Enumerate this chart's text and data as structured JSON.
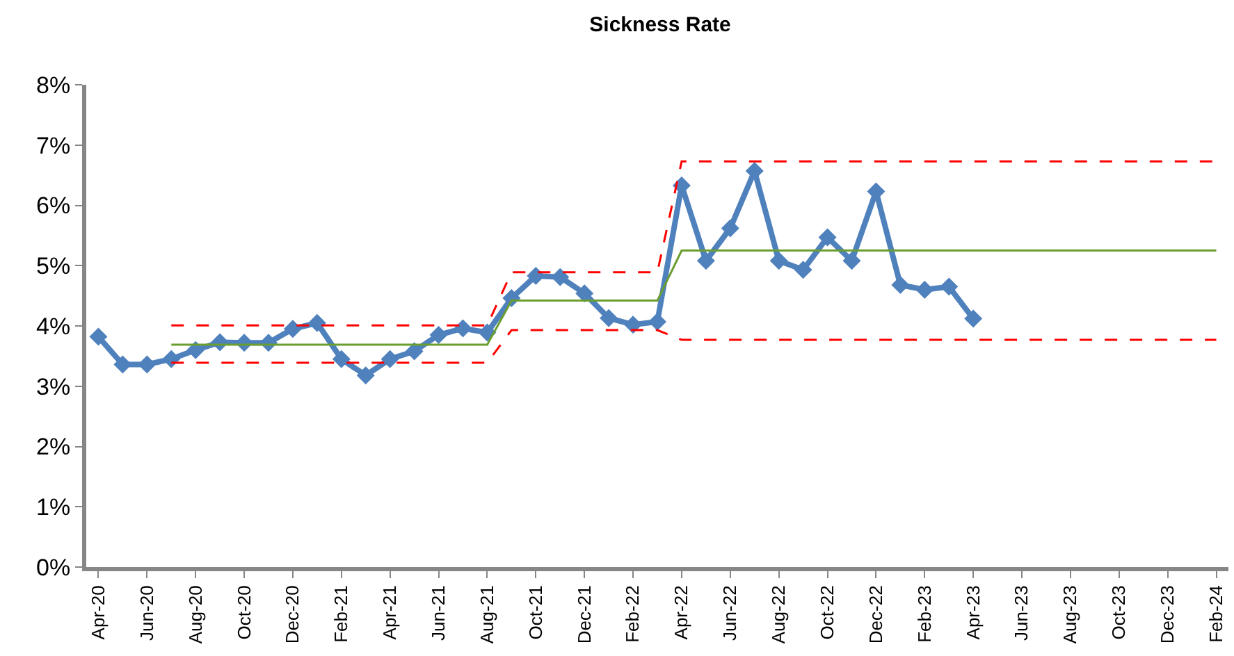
{
  "chart_data": {
    "type": "line",
    "title": "Sickness Rate",
    "categories": [
      "Apr-20",
      null,
      "Jun-20",
      null,
      "Aug-20",
      null,
      "Oct-20",
      null,
      "Dec-20",
      null,
      "Feb-21",
      null,
      "Apr-21",
      null,
      "Jun-21",
      null,
      "Aug-21",
      null,
      "Oct-21",
      null,
      "Dec-21",
      null,
      "Feb-22",
      null,
      "Apr-22",
      null,
      "Jun-22",
      null,
      "Aug-22",
      null,
      "Oct-22",
      null,
      "Dec-22",
      null,
      "Feb-23",
      null,
      "Apr-23",
      null,
      "Jun-23",
      null,
      "Aug-23",
      null,
      "Oct-23",
      null,
      "Dec-23",
      null,
      "Feb-24"
    ],
    "series": [
      {
        "color": "#4f81bd",
        "marker": "diamond",
        "line_style": "solid",
        "values": [
          3.82,
          3.36,
          3.36,
          3.45,
          3.6,
          3.73,
          3.72,
          3.72,
          3.95,
          4.05,
          3.45,
          3.18,
          3.45,
          3.58,
          3.85,
          3.96,
          3.89,
          4.46,
          4.83,
          4.81,
          4.54,
          4.13,
          4.02,
          4.07,
          6.33,
          5.08,
          5.62,
          6.57,
          5.08,
          4.93,
          5.47,
          5.08,
          6.23,
          4.68,
          4.6,
          4.65,
          4.12,
          null,
          null,
          null,
          null,
          null,
          null,
          null,
          null,
          null,
          null
        ]
      },
      {
        "color": "#6a9e2f",
        "marker": "none",
        "line_style": "solid",
        "values": [
          null,
          null,
          null,
          3.69,
          3.69,
          3.69,
          3.69,
          3.69,
          3.69,
          3.69,
          3.69,
          3.69,
          3.69,
          3.69,
          3.69,
          3.69,
          3.69,
          4.42,
          4.42,
          4.42,
          4.42,
          4.42,
          4.42,
          4.42,
          5.25,
          5.25,
          5.25,
          5.25,
          5.25,
          5.25,
          5.25,
          5.25,
          5.25,
          5.25,
          5.25,
          5.25,
          5.25,
          5.25,
          5.25,
          5.25,
          5.25,
          5.25,
          5.25,
          5.25,
          5.25,
          5.25,
          5.25
        ]
      },
      {
        "color": "#ff0000",
        "marker": "none",
        "line_style": "dashed",
        "values": [
          null,
          null,
          null,
          4.01,
          4.01,
          4.01,
          4.01,
          4.01,
          4.01,
          4.01,
          4.01,
          4.01,
          4.01,
          4.01,
          4.01,
          4.01,
          4.01,
          4.89,
          4.89,
          4.89,
          4.89,
          4.89,
          4.89,
          4.89,
          6.73,
          6.73,
          6.73,
          6.73,
          6.73,
          6.73,
          6.73,
          6.73,
          6.73,
          6.73,
          6.73,
          6.73,
          6.73,
          6.73,
          6.73,
          6.73,
          6.73,
          6.73,
          6.73,
          6.73,
          6.73,
          6.73,
          6.73
        ]
      },
      {
        "color": "#ff0000",
        "marker": "none",
        "line_style": "dashed",
        "values": [
          null,
          null,
          null,
          3.39,
          3.39,
          3.39,
          3.39,
          3.39,
          3.39,
          3.39,
          3.39,
          3.39,
          3.39,
          3.39,
          3.39,
          3.39,
          3.39,
          3.93,
          3.93,
          3.93,
          3.93,
          3.93,
          3.93,
          3.93,
          3.77,
          3.77,
          3.77,
          3.77,
          3.77,
          3.77,
          3.77,
          3.77,
          3.77,
          3.77,
          3.77,
          3.77,
          3.77,
          3.77,
          3.77,
          3.77,
          3.77,
          3.77,
          3.77,
          3.77,
          3.77,
          3.77,
          3.77
        ]
      }
    ],
    "ylim": [
      0,
      8
    ],
    "yticks": [
      {
        "value": 0,
        "label": "0%"
      },
      {
        "value": 1,
        "label": "1%"
      },
      {
        "value": 2,
        "label": "2%"
      },
      {
        "value": 3,
        "label": "3%"
      },
      {
        "value": 4,
        "label": "4%"
      },
      {
        "value": 5,
        "label": "5%"
      },
      {
        "value": 6,
        "label": "6%"
      },
      {
        "value": 7,
        "label": "7%"
      },
      {
        "value": 8,
        "label": "8%"
      }
    ],
    "relative": false
  }
}
